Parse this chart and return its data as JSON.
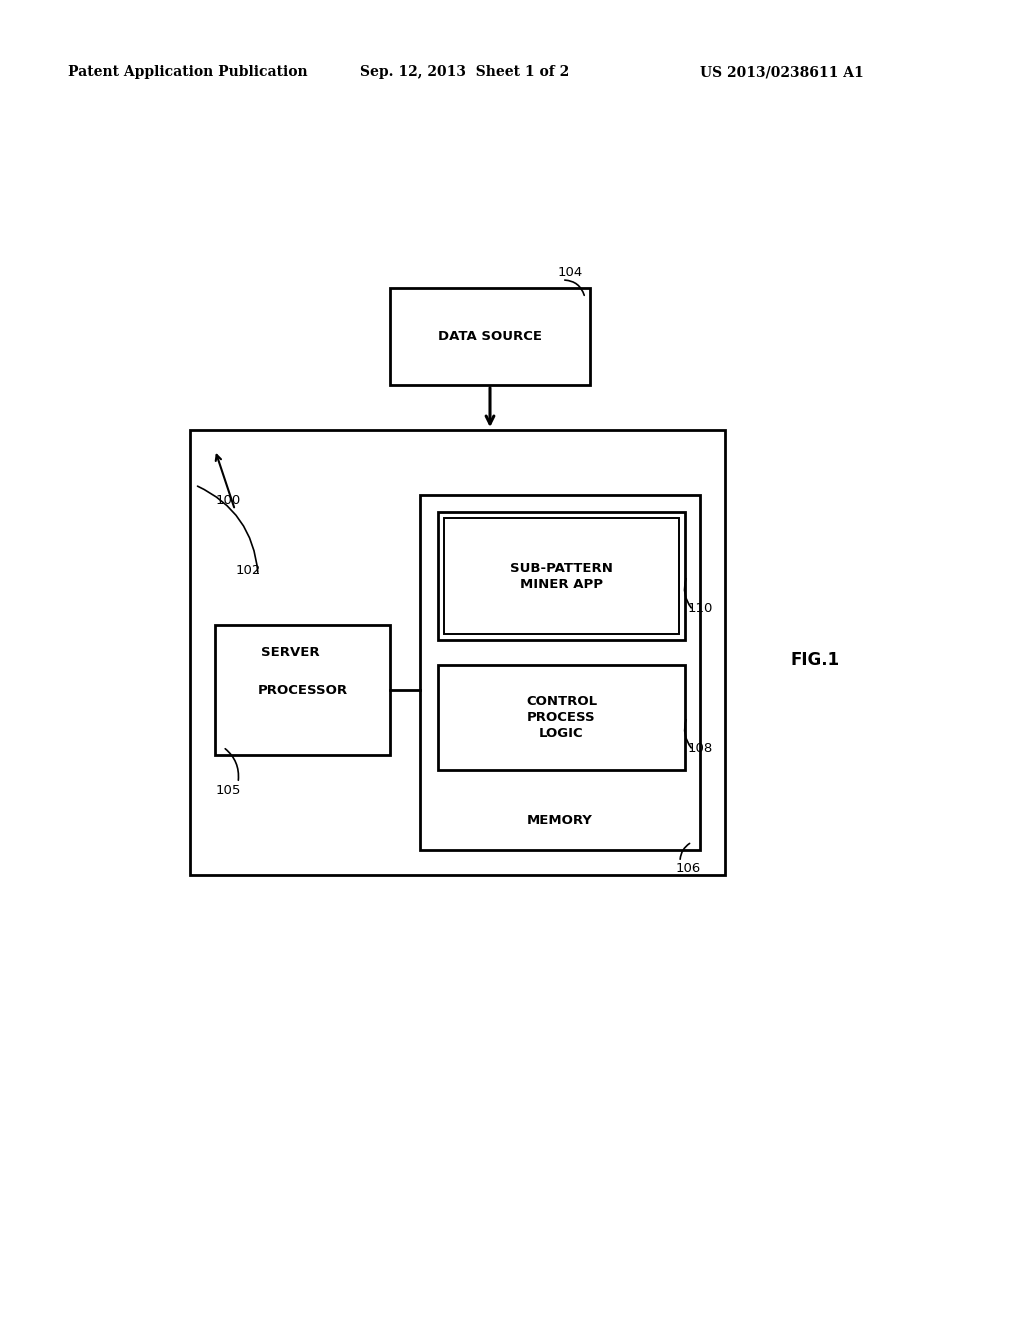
{
  "background_color": "#ffffff",
  "header_left": "Patent Application Publication",
  "header_center": "Sep. 12, 2013  Sheet 1 of 2",
  "header_right": "US 2013/0238611 A1",
  "fig_label": "FIG.1",
  "label_100": "100",
  "label_102": "102",
  "label_104": "104",
  "label_105": "105",
  "label_106": "106",
  "label_108": "108",
  "label_110": "110",
  "text_server": "SERVER",
  "text_processor": "PROCESSOR",
  "text_data_source": "DATA SOURCE",
  "text_memory": "MEMORY",
  "text_control": "CONTROL\nPROCESS\nLOGIC",
  "text_subpattern": "SUB-PATTERN\nMINER APP",
  "line_color": "#000000"
}
